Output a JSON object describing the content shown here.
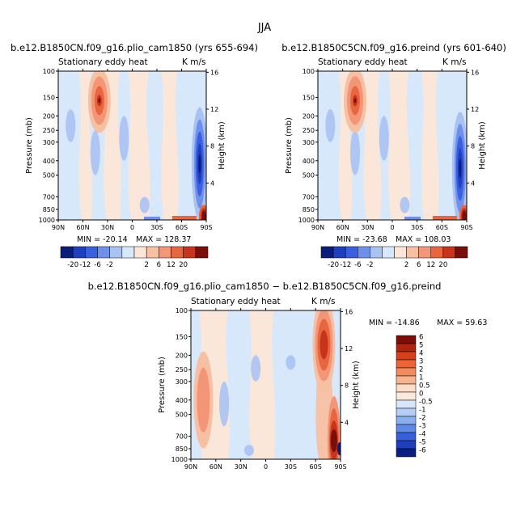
{
  "figure_title": "JJA",
  "chart_data": [
    {
      "type": "heatmap",
      "title": "b.e12.B1850CN.f09_g16.plio_cam1850 (yrs 655-694)",
      "subtitle_left": "Stationary eddy heat",
      "subtitle_right": "K m/s",
      "xlabel": "",
      "ylabel": "Pressure (mb)",
      "ylabel_right": "Height (km)",
      "x_ticks": [
        "90N",
        "60N",
        "30N",
        "0",
        "30S",
        "60S",
        "90S"
      ],
      "y_ticks": [
        "100",
        "150",
        "200",
        "250",
        "300",
        "400",
        "500",
        "700",
        "850",
        "1000"
      ],
      "y_ticks_right": [
        "16",
        "12",
        "8",
        "4"
      ],
      "min_text": "MIN = -20.14",
      "max_text": "MAX = 128.37",
      "colorbar_labels": [
        "-20",
        "-12",
        "-6",
        "-2",
        "2",
        "6",
        "12",
        "20"
      ],
      "features": [
        {
          "kind": "max",
          "lat_north": 40,
          "pressure_mb": 150,
          "value": 6
        },
        {
          "kind": "neg",
          "lat_north": -82,
          "pressure_mb": 420,
          "value": -6
        },
        {
          "kind": "pos",
          "lat_north": -88,
          "pressure_mb": 920,
          "value": 20
        }
      ]
    },
    {
      "type": "heatmap",
      "title": "b.e12.B1850C5CN.f09_g16.preind (yrs 601-640)",
      "subtitle_left": "Stationary eddy heat",
      "subtitle_right": "K m/s",
      "xlabel": "",
      "ylabel": "Pressure (mb)",
      "ylabel_right": "Height (km)",
      "x_ticks": [
        "90N",
        "60N",
        "30N",
        "0",
        "30S",
        "60S",
        "90S"
      ],
      "y_ticks": [
        "100",
        "150",
        "200",
        "250",
        "300",
        "400",
        "500",
        "700",
        "850",
        "1000"
      ],
      "y_ticks_right": [
        "16",
        "12",
        "8",
        "4"
      ],
      "min_text": "MIN = -23.68",
      "max_text": "MAX = 108.03",
      "colorbar_labels": [
        "-20",
        "-12",
        "-6",
        "-2",
        "2",
        "6",
        "12",
        "20"
      ],
      "features": [
        {
          "kind": "max",
          "lat_north": 45,
          "pressure_mb": 150,
          "value": 6
        },
        {
          "kind": "neg",
          "lat_north": -82,
          "pressure_mb": 450,
          "value": -6
        },
        {
          "kind": "pos",
          "lat_north": -88,
          "pressure_mb": 920,
          "value": 20
        }
      ]
    },
    {
      "type": "heatmap",
      "title": "b.e12.B1850CN.f09_g16.plio_cam1850 − b.e12.B1850C5CN.f09_g16.preind",
      "subtitle_left": "Stationary eddy heat",
      "subtitle_right": "K m/s",
      "xlabel": "",
      "ylabel": "Pressure (mb)",
      "ylabel_right": "Height (km)",
      "x_ticks": [
        "90N",
        "60N",
        "30N",
        "0",
        "30S",
        "60S",
        "90S"
      ],
      "y_ticks": [
        "100",
        "150",
        "200",
        "250",
        "300",
        "400",
        "500",
        "700",
        "850",
        "1000"
      ],
      "y_ticks_right": [
        "16",
        "12",
        "8",
        "4"
      ],
      "min_text": "MIN = -14.86",
      "max_text": "MAX =   59.63",
      "colorbar_labels": [
        "6",
        "5",
        "4",
        "3",
        "2",
        "1",
        "0.5",
        "0",
        "-0.5",
        "-1",
        "-2",
        "-3",
        "-4",
        "-5",
        "-6"
      ],
      "features": [
        {
          "kind": "pos",
          "lat_north": -70,
          "pressure_mb": 150,
          "value": 3
        },
        {
          "kind": "pos",
          "lat_north": 75,
          "pressure_mb": 400,
          "value": 2
        },
        {
          "kind": "pos",
          "lat_north": -85,
          "pressure_mb": 750,
          "value": 6
        }
      ]
    }
  ],
  "palette": {
    "main_colorbar": [
      "#0b1d7a",
      "#1e3fbf",
      "#3a5fe0",
      "#6f8fea",
      "#a8c2f2",
      "#d8e8fb",
      "#fde6d8",
      "#f8c0a3",
      "#f39577",
      "#e8663f",
      "#c7341b",
      "#7a0f0a"
    ],
    "diff_colorbar": [
      "#7f0c06",
      "#b0230e",
      "#d7401a",
      "#ef6433",
      "#f48a5f",
      "#f7b48f",
      "#fcddc7",
      "#fde9dc",
      "#d7e6fb",
      "#b3cdf5",
      "#8bb0ef",
      "#5f89e6",
      "#3761dc",
      "#1e3ebf",
      "#0a1d80"
    ]
  }
}
